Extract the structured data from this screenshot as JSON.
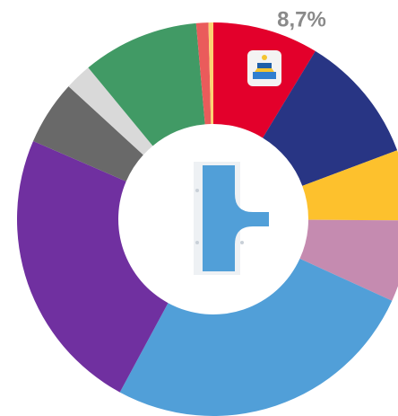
{
  "chart_data": {
    "type": "donut",
    "values": [
      8.7,
      10.6,
      5.8,
      6.7,
      26.1,
      23.6,
      5.3,
      2.2,
      9.6,
      1.0,
      0.4
    ],
    "value_labels": [
      "8,7%",
      null,
      null,
      null,
      null,
      null,
      null,
      null,
      null,
      null,
      null
    ],
    "colors": [
      "#e3002b",
      "#283584",
      "#fdc12d",
      "#c58bb0",
      "#519fd8",
      "#7030a0",
      "#696969",
      "#d9d9d9",
      "#419a65",
      "#ea5b5b",
      "#fcd273"
    ]
  }
}
